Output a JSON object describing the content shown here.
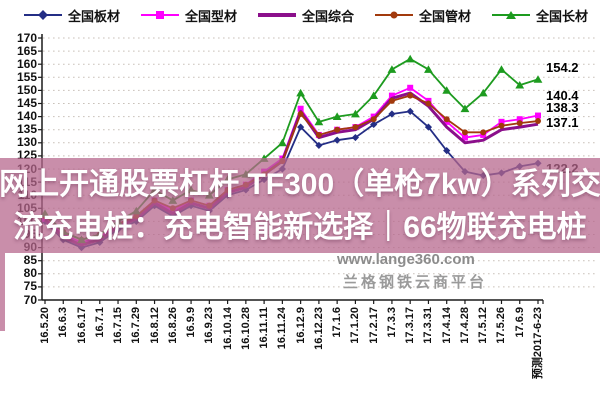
{
  "overlay": {
    "line1": "网上开通股票杠杆 TF300（单枪7kw）系列交",
    "line2": "流充电桩：充电智能新选择｜66物联充电桩",
    "background_rgba": "rgba(182,103,140,0.74)"
  },
  "watermark": {
    "site": "www.lange360.com",
    "platform": "兰格钢铁云商平台"
  },
  "colors": {
    "plate_navy": "#242E85",
    "section_magenta": "#FF00FF",
    "composite_purple": "#8B0F8B",
    "pipe_brown": "#A23A0D",
    "long_green": "#1D9B1F",
    "grid": "#C9C1B9",
    "axis": "#1A1A1A"
  },
  "chart_data": {
    "type": "line",
    "title": "",
    "xlabel": "",
    "ylabel": "",
    "ylim": [
      70,
      170
    ],
    "y_tick_step": 5,
    "grid": "dotted-horizontal",
    "legend_position": "top",
    "categories": [
      "16.5.20",
      "16.6.3",
      "16.6.17",
      "16.7.1",
      "16.7.15",
      "16.7.29",
      "16.8.12",
      "16.8.26",
      "16.9.9",
      "16.9.23",
      "16.10.14",
      "16.10.28",
      "16.11.11",
      "16.11.24",
      "16.12.9",
      "16.12.23",
      "17.1.6",
      "17.1.20",
      "17.2.17",
      "17.3.3",
      "17.3.17",
      "17.3.31",
      "17.4.14",
      "17.4.28",
      "17.5.12",
      "17.5.26",
      "17.6.9",
      "预测2017-6-23"
    ],
    "series": [
      {
        "name": "全国板材",
        "marker": "diamond",
        "color_key": "plate_navy",
        "values": [
          100,
          93,
          90,
          92,
          97,
          100,
          106,
          102,
          106,
          104,
          110,
          112,
          116,
          120,
          136,
          129,
          131,
          132,
          137,
          141,
          142,
          136,
          127,
          119,
          117.5,
          118.5,
          121,
          122.2
        ]
      },
      {
        "name": "全国型材",
        "marker": "square",
        "color_key": "section_magenta",
        "values": [
          101,
          95,
          92,
          94,
          99,
          102,
          108,
          104,
          108,
          106,
          112,
          114,
          119,
          124,
          143,
          133,
          135,
          136,
          140,
          148,
          151,
          146,
          138,
          132,
          133,
          138,
          139,
          140.4
        ]
      },
      {
        "name": "全国综合",
        "marker": "none",
        "color_key": "composite_purple",
        "values": [
          100.5,
          94,
          91,
          93,
          98,
          101,
          107,
          103,
          107,
          105,
          111,
          113,
          118,
          123,
          142,
          132,
          134,
          135,
          139,
          147,
          149,
          144,
          136,
          130,
          131,
          135,
          136,
          137.1
        ]
      },
      {
        "name": "全国管材",
        "marker": "circle",
        "color_key": "pipe_brown",
        "values": [
          102,
          96,
          93,
          95,
          99,
          102,
          108,
          105,
          108,
          106,
          112,
          114,
          118,
          123,
          141,
          133,
          135,
          136,
          139,
          146,
          148,
          145,
          139,
          134,
          134,
          136.5,
          137.5,
          138.3
        ]
      },
      {
        "name": "全国长材",
        "marker": "triangle",
        "color_key": "long_green",
        "values": [
          103,
          96,
          93,
          95,
          100,
          104,
          112,
          108,
          112,
          110,
          116,
          118,
          124,
          130,
          149,
          138,
          140,
          141,
          148,
          158,
          162,
          158,
          150,
          143,
          149,
          158,
          152,
          154.2
        ]
      }
    ],
    "end_labels": [
      "154.2",
      "140.4",
      "138.3",
      "137.1",
      "122.2"
    ]
  }
}
